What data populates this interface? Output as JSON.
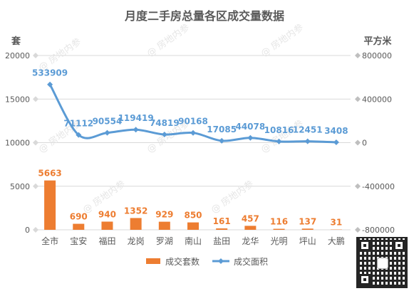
{
  "chart_data": {
    "type": "bar+line",
    "title": "月度二手房总量各区成交量数据",
    "categories": [
      "全市",
      "宝安",
      "福田",
      "龙岗",
      "罗湖",
      "南山",
      "盐田",
      "龙华",
      "光明",
      "坪山",
      "大鹏"
    ],
    "left_axis": {
      "unit_label": "套",
      "min": 0,
      "max": 20000,
      "ticks": [
        0,
        5000,
        10000,
        15000,
        20000
      ]
    },
    "right_axis": {
      "unit_label": "平方米",
      "min": -800000,
      "max": 800000,
      "ticks": [
        -800000,
        -400000,
        0,
        400000,
        800000
      ]
    },
    "series": [
      {
        "name": "成交套数",
        "type": "bar",
        "axis": "left",
        "color": "#ED7D31",
        "values": [
          5663,
          690,
          940,
          1352,
          929,
          850,
          161,
          457,
          116,
          137,
          31
        ]
      },
      {
        "name": "成交面积",
        "type": "line",
        "axis": "right",
        "color": "#5B9BD5",
        "values": [
          533909,
          71112,
          90554,
          119419,
          74819,
          90168,
          17085,
          44078,
          10816,
          12451,
          3408
        ]
      }
    ],
    "grid": true,
    "legend": "bottom",
    "watermark": "房地内参"
  }
}
